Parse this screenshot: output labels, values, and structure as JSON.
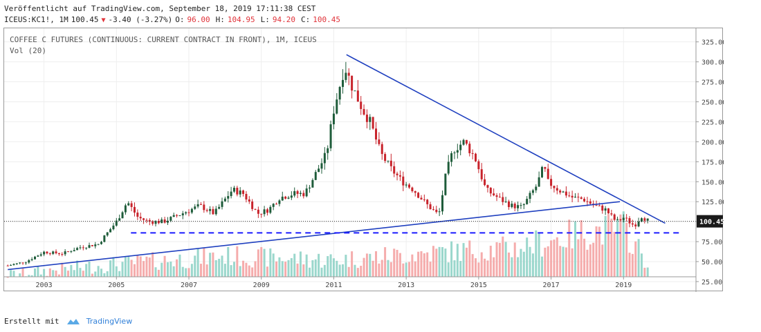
{
  "header": {
    "published": "Veröffentlicht auf TradingView.com, September 18, 2019 17:11:38 CEST",
    "symbol": "ICEUS:KC1!, 1M",
    "last": "100.45",
    "change_arrow": "▼",
    "change": "-3.40 (-3.27%)",
    "open_label": "O:",
    "open": "96.00",
    "high_label": "H:",
    "high": "104.95",
    "low_label": "L:",
    "low": "94.20",
    "close_label": "C:",
    "close": "100.45"
  },
  "legend": {
    "title": "COFFEE C FUTURES (CONTINUOUS: CURRENT CONTRACT IN FRONT), 1M, ICEUS",
    "volume": "Vol (20)"
  },
  "footer": {
    "created_with": "Erstellt mit",
    "brand": "TradingView"
  },
  "colors": {
    "up_candle": "#1e5c3a",
    "down_candle": "#c8232b",
    "vol_up": "#8fd3c6",
    "vol_down": "#f4a3a3",
    "trendline": "#1e3fbf",
    "dashed_support": "#1a1aff",
    "price_label_bg": "#1a1a1a"
  },
  "chart_data": {
    "type": "candlestick",
    "interval": "1M",
    "x_tick_labels": [
      "2003",
      "2005",
      "2007",
      "2009",
      "2011",
      "2013",
      "2015",
      "2017",
      "2019"
    ],
    "y_tick_labels": [
      "325.00",
      "300.00",
      "275.00",
      "250.00",
      "225.00",
      "200.00",
      "175.00",
      "150.00",
      "125.00",
      "100.00",
      "75.00",
      "50.00",
      "25.00"
    ],
    "ylim": [
      12,
      342
    ],
    "xlim": [
      2001.9,
      2021.0
    ],
    "last_price_label": "100.45",
    "price_path_monthly_close": [
      [
        2002.0,
        45
      ],
      [
        2002.5,
        50
      ],
      [
        2003.0,
        62
      ],
      [
        2003.5,
        60
      ],
      [
        2004.0,
        68
      ],
      [
        2004.5,
        72
      ],
      [
        2005.0,
        100
      ],
      [
        2005.3,
        125
      ],
      [
        2005.6,
        105
      ],
      [
        2005.9,
        100
      ],
      [
        2006.3,
        100
      ],
      [
        2006.8,
        110
      ],
      [
        2007.3,
        120
      ],
      [
        2007.7,
        110
      ],
      [
        2008.2,
        140
      ],
      [
        2008.5,
        135
      ],
      [
        2008.9,
        110
      ],
      [
        2009.2,
        115
      ],
      [
        2009.5,
        130
      ],
      [
        2009.9,
        135
      ],
      [
        2010.2,
        135
      ],
      [
        2010.5,
        160
      ],
      [
        2010.8,
        185
      ],
      [
        2011.0,
        240
      ],
      [
        2011.3,
        295
      ],
      [
        2011.5,
        270
      ],
      [
        2011.8,
        240
      ],
      [
        2012.0,
        225
      ],
      [
        2012.3,
        185
      ],
      [
        2012.6,
        165
      ],
      [
        2012.9,
        150
      ],
      [
        2013.2,
        140
      ],
      [
        2013.6,
        120
      ],
      [
        2013.9,
        108
      ],
      [
        2014.1,
        160
      ],
      [
        2014.3,
        190
      ],
      [
        2014.6,
        200
      ],
      [
        2014.9,
        180
      ],
      [
        2015.2,
        140
      ],
      [
        2015.6,
        128
      ],
      [
        2015.9,
        120
      ],
      [
        2016.2,
        118
      ],
      [
        2016.6,
        145
      ],
      [
        2016.8,
        170
      ],
      [
        2016.9,
        150
      ],
      [
        2017.2,
        140
      ],
      [
        2017.6,
        130
      ],
      [
        2017.9,
        128
      ],
      [
        2018.2,
        120
      ],
      [
        2018.5,
        115
      ],
      [
        2018.8,
        100
      ],
      [
        2019.0,
        105
      ],
      [
        2019.3,
        95
      ],
      [
        2019.5,
        107
      ],
      [
        2019.7,
        100.45
      ]
    ],
    "trendlines": [
      {
        "name": "",
        "from": [
          2011.35,
          309
        ],
        "to": [
          2020.15,
          98
        ]
      },
      {
        "name": "",
        "from": [
          2002.0,
          40
        ],
        "to": [
          2018.9,
          125
        ]
      }
    ],
    "horizontal_lines": [
      {
        "style": "dashed",
        "y": 86,
        "x_from": 2005.4,
        "x_to": 2020.6
      }
    ],
    "volume": {
      "name": "Vol (20)",
      "relative_heights_note": "volume bars scaled to the lower band of the price axis",
      "approx_levels": [
        [
          2002,
          22
        ],
        [
          2005,
          35
        ],
        [
          2008,
          45
        ],
        [
          2011,
          40
        ],
        [
          2014,
          50
        ],
        [
          2016,
          55
        ],
        [
          2018,
          75
        ],
        [
          2019,
          80
        ],
        [
          2019.7,
          35
        ]
      ]
    }
  }
}
